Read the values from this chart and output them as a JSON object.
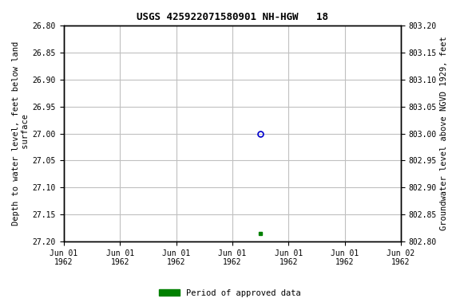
{
  "title": "USGS 425922071580901 NH-HGW   18",
  "ylabel_left": "Depth to water level, feet below land\n surface",
  "ylabel_right": "Groundwater level above NGVD 1929, feet",
  "ylim_left": [
    26.8,
    27.2
  ],
  "ylim_right": [
    802.8,
    803.2
  ],
  "left_yticks": [
    26.8,
    26.85,
    26.9,
    26.95,
    27.0,
    27.05,
    27.1,
    27.15,
    27.2
  ],
  "right_yticks": [
    802.8,
    802.85,
    802.9,
    802.95,
    803.0,
    803.05,
    803.1,
    803.15,
    803.2
  ],
  "data_open_x": 3.5,
  "data_open_y": 27.0,
  "data_open_color": "#0000cc",
  "data_filled_x": 3.5,
  "data_filled_y": 27.185,
  "data_filled_color": "#008000",
  "xlim": [
    0,
    6
  ],
  "xtick_positions": [
    0,
    1,
    2,
    3,
    4,
    5,
    6
  ],
  "xtick_labels": [
    "Jun 01\n1962",
    "Jun 01\n1962",
    "Jun 01\n1962",
    "Jun 01\n1962",
    "Jun 01\n1962",
    "Jun 01\n1962",
    "Jun 02\n1962"
  ],
  "grid_color": "#c0c0c0",
  "background_color": "#ffffff",
  "legend_label": "Period of approved data",
  "legend_color": "#008000",
  "font_family": "monospace",
  "title_fontsize": 9,
  "tick_fontsize": 7,
  "label_fontsize": 7.5,
  "legend_fontsize": 7.5
}
